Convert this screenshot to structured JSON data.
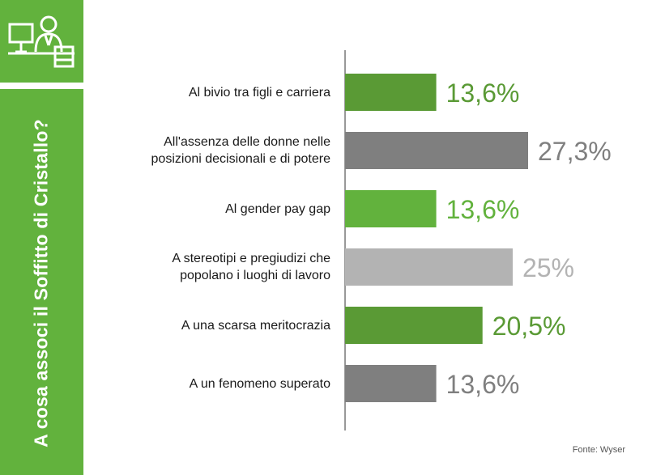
{
  "sidebar": {
    "title": "A cosa associ il Soffitto di Cristallo?",
    "icon": "office-worker-desk-icon",
    "color": "#62b23d"
  },
  "chart_data": {
    "type": "bar",
    "orientation": "horizontal",
    "categories": [
      "Al bivio tra figli e carriera",
      "All'assenza delle donne nelle\nposizioni decisionali e di potere",
      "Al gender pay gap",
      "A stereotipi e pregiudizi che\npopolano i luoghi di lavoro",
      "A una scarsa meritocrazia",
      "A un fenomeno superato"
    ],
    "values": [
      13.6,
      27.3,
      13.6,
      25,
      20.5,
      13.6
    ],
    "value_labels": [
      "13,6%",
      "27,3%",
      "13,6%",
      "25%",
      "20,5%",
      "13,6%"
    ],
    "colors": [
      "#5a9a35",
      "#7f7f7f",
      "#62b23d",
      "#b3b3b3",
      "#5a9a35",
      "#7f7f7f"
    ],
    "xlim": [
      0,
      27.3
    ],
    "grid": false,
    "legend": "none"
  },
  "footer": {
    "source": "Fonte: Wyser"
  }
}
